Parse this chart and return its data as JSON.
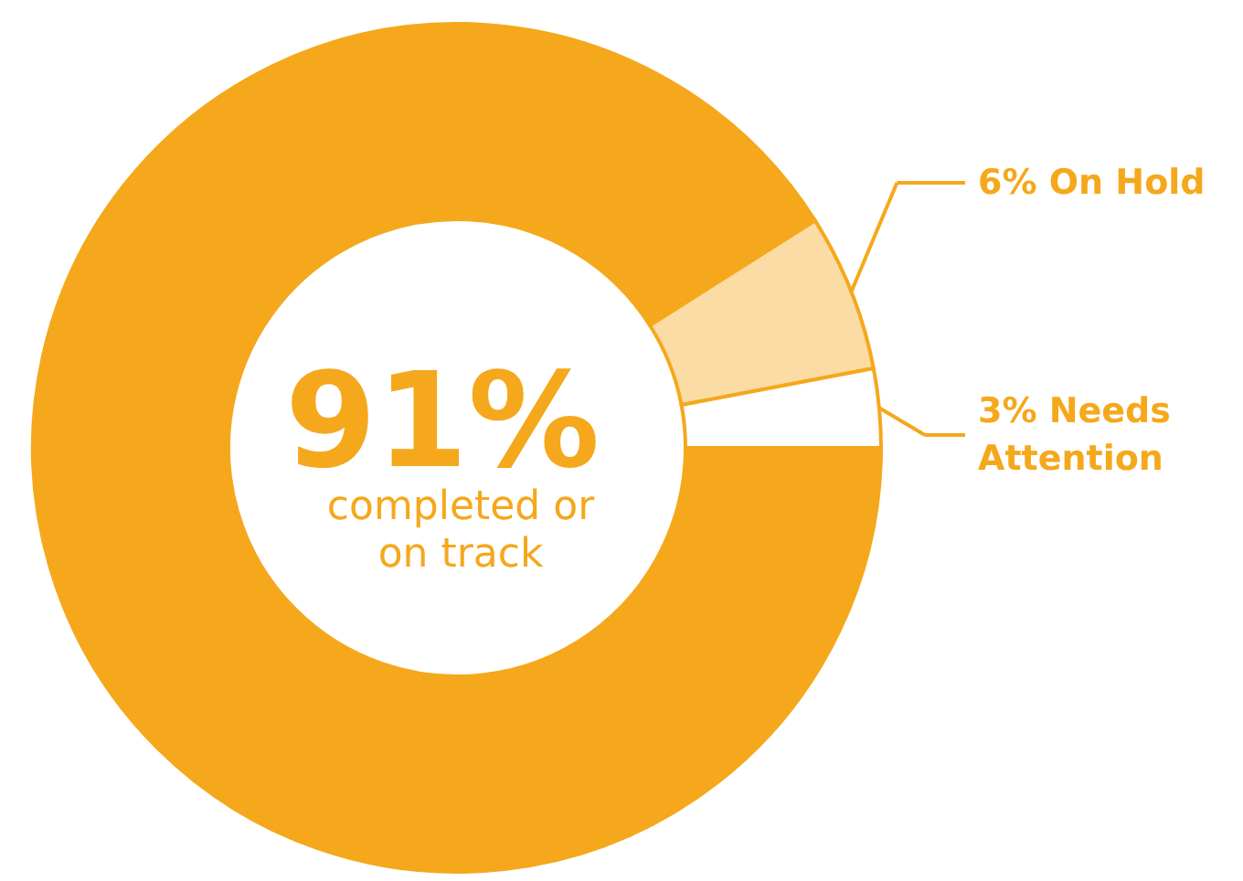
{
  "chart_data": {
    "type": "donut",
    "categories": [
      "completed or on track",
      "On Hold",
      "Needs Attention"
    ],
    "values": [
      91,
      6,
      3
    ],
    "colors": [
      "#f5a81c",
      "#fbdca4",
      "#ffffff"
    ],
    "value_labels": [
      "91%",
      "6%",
      "3%"
    ],
    "legend": "right"
  }
}
